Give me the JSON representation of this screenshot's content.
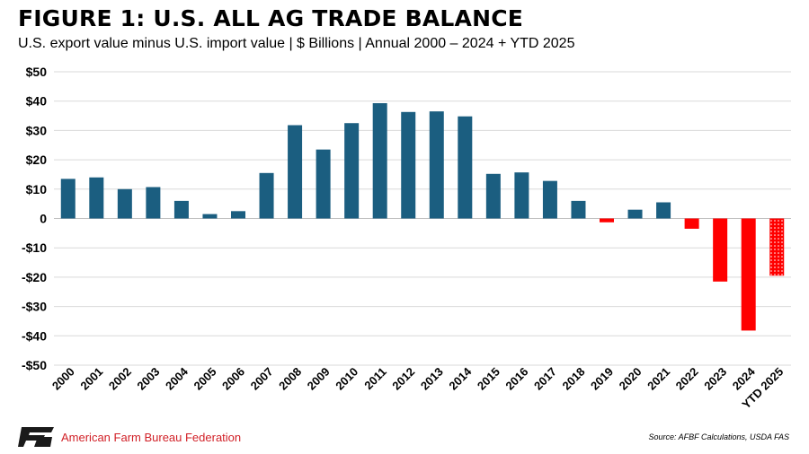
{
  "title": "FIGURE 1: U.S. ALL AG TRADE BALANCE",
  "subtitle": "U.S. export value minus U.S. import value | $ Billions | Annual 2000 – 2024 + YTD 2025",
  "footer": {
    "org": "American Farm Bureau Federation",
    "source": "Source: AFBF Calculations, USDA FAS",
    "logo_text": "FB"
  },
  "colors": {
    "positive": "#1b5e80",
    "negative": "#ff0000",
    "grid": "#d9d9d9",
    "org": "#d11f26"
  },
  "chart_data": {
    "type": "bar",
    "categories": [
      "2000",
      "2001",
      "2002",
      "2003",
      "2004",
      "2005",
      "2006",
      "2007",
      "2008",
      "2009",
      "2010",
      "2011",
      "2012",
      "2013",
      "2014",
      "2015",
      "2016",
      "2017",
      "2018",
      "2019",
      "2020",
      "2021",
      "2022",
      "2023",
      "2024",
      "YTD 2025"
    ],
    "values": [
      13.5,
      14.0,
      10.0,
      10.7,
      6.0,
      1.5,
      2.5,
      15.5,
      31.8,
      23.5,
      32.5,
      39.3,
      36.3,
      36.5,
      34.8,
      15.2,
      15.7,
      12.8,
      6.0,
      -1.3,
      3.0,
      5.5,
      -3.5,
      -21.5,
      -38.2,
      -19.5
    ],
    "ylim": [
      -50,
      50
    ],
    "yticks": [
      {
        "value": 50,
        "label": "$50"
      },
      {
        "value": 40,
        "label": "$40"
      },
      {
        "value": 30,
        "label": "$30"
      },
      {
        "value": 20,
        "label": "$20"
      },
      {
        "value": 10,
        "label": "$10"
      },
      {
        "value": 0,
        "label": "0"
      },
      {
        "value": -10,
        "label": "-$10"
      },
      {
        "value": -20,
        "label": "-$20"
      },
      {
        "value": -30,
        "label": "-$30"
      },
      {
        "value": -40,
        "label": "-$40"
      },
      {
        "value": -50,
        "label": "-$50"
      }
    ],
    "patterned": [
      "YTD 2025"
    ],
    "grid": true,
    "legend": "none"
  }
}
